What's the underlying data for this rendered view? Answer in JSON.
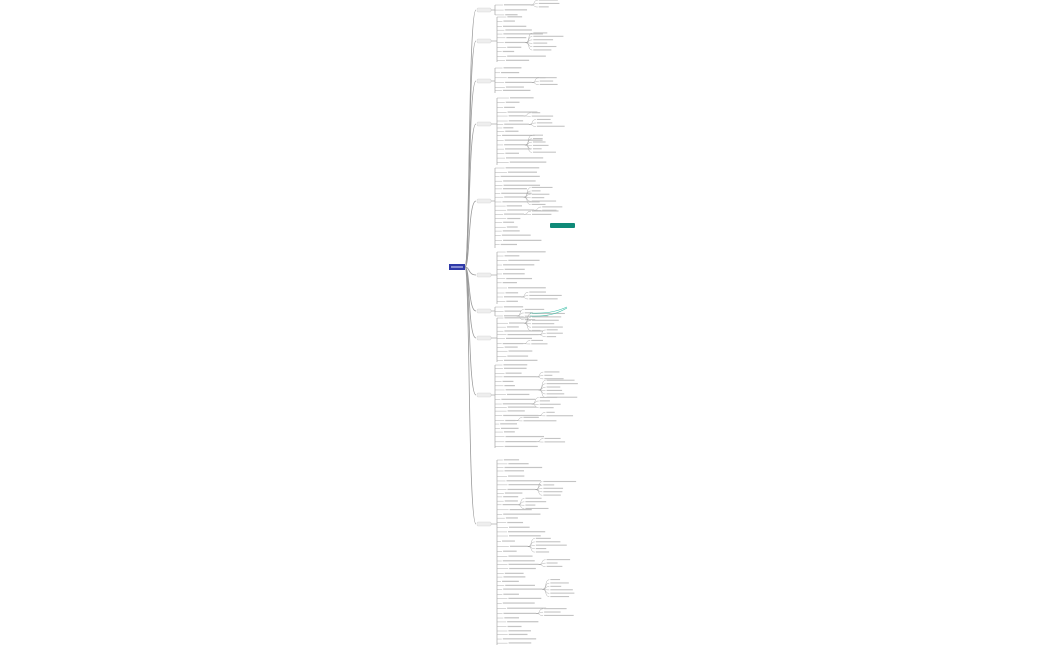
{
  "mindmap": {
    "root_color": "#2f3aa8",
    "line_color": "#9a9a9a",
    "leaf_text_color": "#c4c4c4",
    "branch_label_fill": "#eeeeee",
    "highlight_node_color": "#0f8a78",
    "highlight_link_color": "#3cbfa8"
  }
}
